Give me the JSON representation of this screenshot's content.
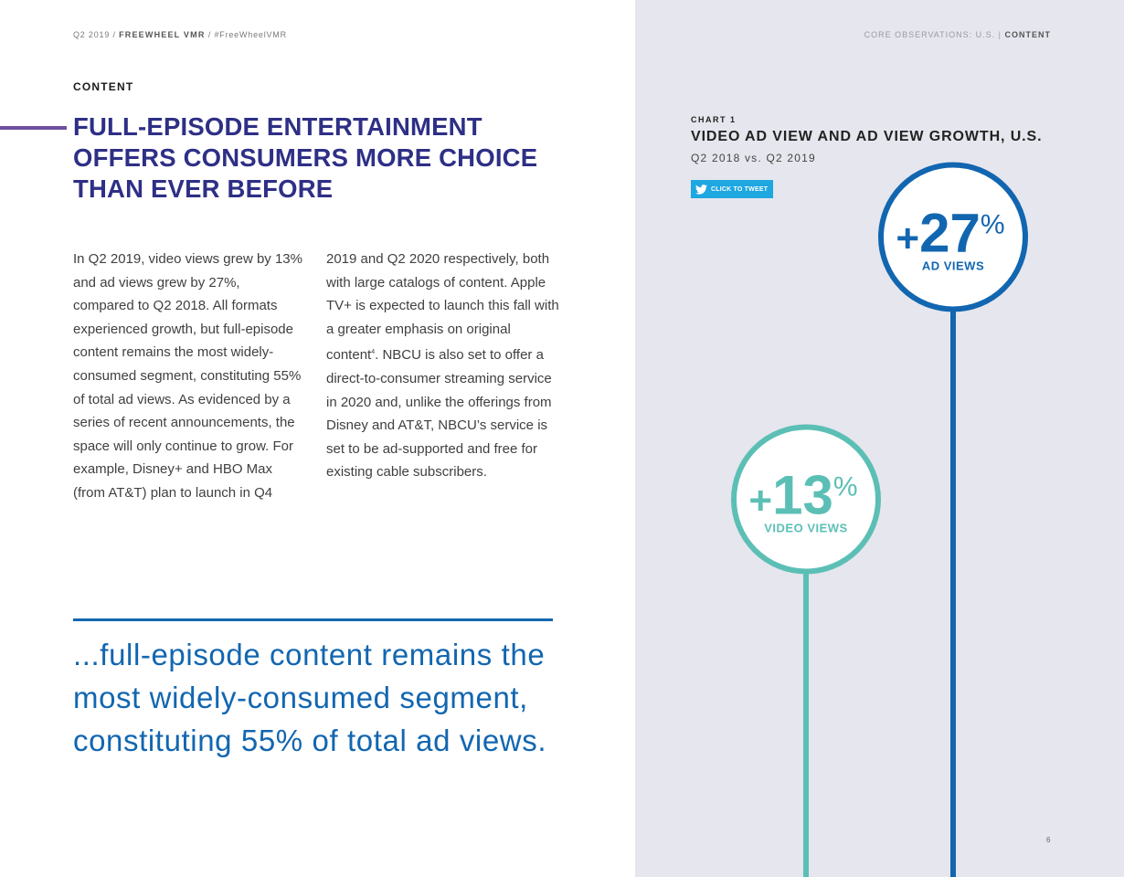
{
  "header": {
    "left_date": "Q2 2019",
    "left_separator": "/",
    "left_brand": "FREEWHEEL VMR",
    "left_hashtag": "#FreeWheelVMR",
    "right_section": "CORE OBSERVATIONS: U.S.",
    "right_separator": "|",
    "right_active": "CONTENT"
  },
  "section_label": "CONTENT",
  "headline": "FULL-EPISODE ENTERTAINMENT OFFERS CONSUMERS MORE CHOICE THAN EVER BEFORE",
  "body": {
    "col1": "In Q2 2019, video views grew by 13% and ad views grew by 27%, compared to Q2 2018. All formats experienced growth, but full-episode content remains the most widely-consumed segment, constituting 55% of total ad views. As evidenced by a series of recent announcements, the space will only continue to grow. For example, Disney+ and HBO Max (from AT&T) plan to launch in Q4",
    "col2_part1": "2019 and Q2 2020 respectively, both with large catalogs of content. Apple TV+ is expected to launch this fall with a greater emphasis on original content",
    "col2_footnote": "4",
    "col2_part2": ". NBCU is also set to offer a direct-to-consumer streaming service in 2020 and, unlike the offerings from Disney and AT&T, NBCU’s service is set to be ad-supported and free for existing cable subscribers."
  },
  "pull_quote": "...full-episode content remains the most widely-consumed segment, constituting 55% of total ad views.",
  "chart": {
    "number": "CHART 1",
    "title": "VIDEO AD VIEW AND AD VIEW GROWTH, U.S.",
    "subtitle": "Q2 2018 vs. Q2 2019",
    "tweet_label": "CLICK TO TWEET",
    "tweet_icon": "twitter-bird-icon"
  },
  "chart_data": {
    "type": "bar",
    "categories": [
      "VIDEO VIEWS",
      "AD VIEWS"
    ],
    "values": [
      13,
      27
    ],
    "value_prefix": "+",
    "value_suffix": "%",
    "colors": [
      "#5cbfb5",
      "#1266b0"
    ],
    "title": "VIDEO AD VIEW AND AD VIEW GROWTH, U.S.",
    "subtitle": "Q2 2018 vs. Q2 2019"
  },
  "page_number": "6"
}
